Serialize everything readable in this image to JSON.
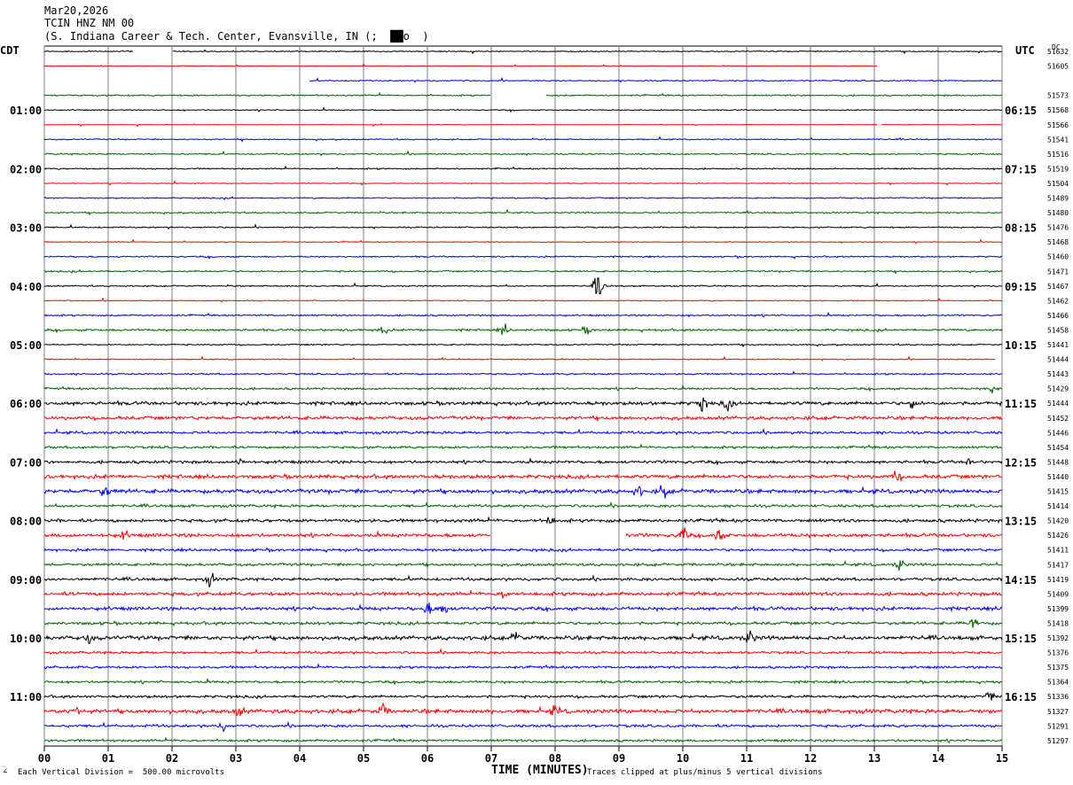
{
  "header": {
    "date": "Mar20,2026",
    "station": "TCIN HNZ NM 00",
    "location": "(S. Indiana Career & Tech. Center, Evansville, IN (;  ██o  )"
  },
  "left_tz": "CDT",
  "right_tz": "UTC",
  "dc_label": "DC",
  "footer": {
    "scale": "Each Vertical Division =  500.00 microvolts",
    "xlabel": "TIME (MINUTES)",
    "clip_note": "Traces clipped at plus/minus 5 vertical divisions"
  },
  "colors": {
    "trace_cycle": [
      "#000000",
      "#ff0000",
      "#0000ff",
      "#006600"
    ],
    "grid": "#7f7f7f"
  },
  "chart_data": {
    "type": "line",
    "title": "TCIN HNZ NM 00",
    "xlabel": "TIME (MINUTES)",
    "xlim": [
      0,
      15
    ],
    "x_ticks": [
      "00",
      "01",
      "02",
      "03",
      "04",
      "05",
      "06",
      "07",
      "08",
      "09",
      "10",
      "11",
      "12",
      "13",
      "14",
      "15"
    ],
    "left_hour_labels": [
      "01:00",
      "02:00",
      "03:00",
      "04:00",
      "05:00",
      "06:00",
      "07:00",
      "08:00",
      "09:00",
      "10:00",
      "11:00"
    ],
    "right_hour_labels": [
      "06:15",
      "07:15",
      "08:15",
      "09:15",
      "10:15",
      "11:15",
      "12:15",
      "13:15",
      "14:15",
      "15:15",
      "16:15"
    ],
    "dc_offsets": [
      "51632",
      "51605",
      "",
      "51573",
      "51568",
      "51566",
      "51541",
      "51516",
      "51519",
      "51504",
      "51489",
      "51480",
      "51476",
      "51468",
      "51460",
      "51471",
      "51467",
      "51462",
      "51466",
      "51458",
      "51441",
      "51444",
      "51443",
      "51429",
      "51444",
      "51452",
      "51446",
      "51454",
      "51448",
      "51440",
      "51415",
      "51414",
      "51420",
      "51426",
      "51411",
      "51417",
      "51419",
      "51409",
      "51399",
      "51418",
      "51392",
      "51376",
      "51375",
      "51364",
      "51336",
      "51327",
      "51291",
      "51297"
    ],
    "trace_count": 48,
    "minutes_per_trace": 15,
    "amplitude": [
      0.4,
      0.15,
      0.45,
      0.55,
      0.4,
      0.2,
      0.45,
      0.55,
      0.5,
      0.25,
      0.5,
      0.55,
      0.5,
      0.3,
      0.55,
      0.6,
      0.5,
      0.35,
      0.6,
      0.8,
      0.5,
      0.4,
      0.6,
      0.8,
      1.3,
      1.3,
      1.0,
      0.9,
      1.1,
      1.4,
      1.5,
      1.0,
      1.2,
      1.3,
      1.0,
      1.0,
      1.1,
      1.3,
      1.3,
      1.1,
      1.5,
      0.9,
      0.9,
      0.9,
      1.0,
      1.5,
      1.0,
      0.9
    ],
    "gaps": [
      {
        "trace": 0,
        "from": 1.4,
        "to": 2.0
      },
      {
        "trace": 1,
        "from": 13.05,
        "to": 15.0
      },
      {
        "trace": 2,
        "from": 0.0,
        "to": 4.15
      },
      {
        "trace": 3,
        "from": 7.0,
        "to": 7.85
      },
      {
        "trace": 5,
        "from": 13.05,
        "to": 13.1
      },
      {
        "trace": 21,
        "from": 14.9,
        "to": 15.0
      },
      {
        "trace": 33,
        "from": 7.0,
        "to": 9.1
      }
    ],
    "events": [
      {
        "trace": 16,
        "minute": 8.68,
        "amp": 20
      },
      {
        "trace": 19,
        "minute": 5.3,
        "amp": 4
      },
      {
        "trace": 19,
        "minute": 7.2,
        "amp": 4
      },
      {
        "trace": 19,
        "minute": 8.5,
        "amp": 3
      },
      {
        "trace": 23,
        "minute": 14.85,
        "amp": 4
      },
      {
        "trace": 24,
        "minute": 10.3,
        "amp": 7
      },
      {
        "trace": 24,
        "minute": 10.7,
        "amp": 5
      },
      {
        "trace": 24,
        "minute": 13.6,
        "amp": 4
      },
      {
        "trace": 28,
        "minute": 3.05,
        "amp": 3
      },
      {
        "trace": 28,
        "minute": 14.5,
        "amp": 3
      },
      {
        "trace": 29,
        "minute": 13.35,
        "amp": 4
      },
      {
        "trace": 30,
        "minute": 0.95,
        "amp": 4
      },
      {
        "trace": 30,
        "minute": 9.7,
        "amp": 5
      },
      {
        "trace": 30,
        "minute": 9.3,
        "amp": 4
      },
      {
        "trace": 32,
        "minute": 7.9,
        "amp": 5
      },
      {
        "trace": 33,
        "minute": 10.0,
        "amp": 7
      },
      {
        "trace": 33,
        "minute": 10.55,
        "amp": 7
      },
      {
        "trace": 33,
        "minute": 1.25,
        "amp": 3
      },
      {
        "trace": 35,
        "minute": 13.4,
        "amp": 5
      },
      {
        "trace": 36,
        "minute": 2.6,
        "amp": 5
      },
      {
        "trace": 37,
        "minute": 7.2,
        "amp": 4
      },
      {
        "trace": 38,
        "minute": 6.0,
        "amp": 5
      },
      {
        "trace": 38,
        "minute": 6.25,
        "amp": 6
      },
      {
        "trace": 39,
        "minute": 14.55,
        "amp": 5
      },
      {
        "trace": 40,
        "minute": 0.7,
        "amp": 3
      },
      {
        "trace": 40,
        "minute": 7.4,
        "amp": 5
      },
      {
        "trace": 40,
        "minute": 11.05,
        "amp": 6
      },
      {
        "trace": 44,
        "minute": 14.8,
        "amp": 4
      },
      {
        "trace": 45,
        "minute": 0.5,
        "amp": 4
      },
      {
        "trace": 45,
        "minute": 3.05,
        "amp": 4
      },
      {
        "trace": 45,
        "minute": 5.3,
        "amp": 5
      },
      {
        "trace": 45,
        "minute": 8.0,
        "amp": 4
      },
      {
        "trace": 46,
        "minute": 2.8,
        "amp": 3
      }
    ]
  }
}
